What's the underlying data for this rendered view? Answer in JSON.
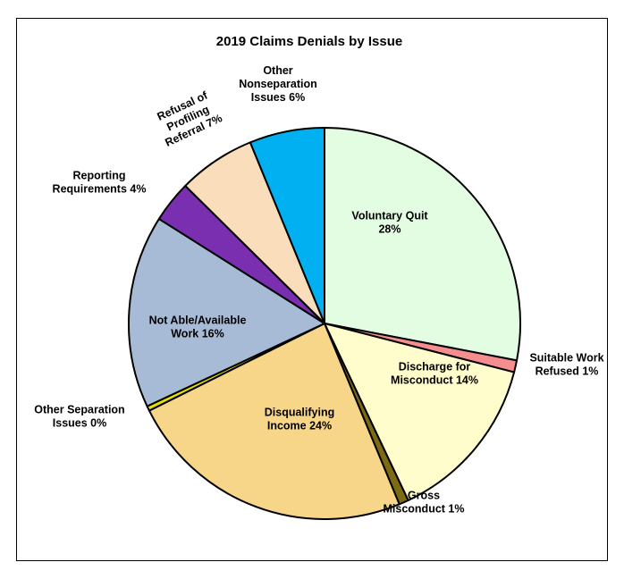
{
  "chart_data": {
    "type": "pie",
    "title": "2019 Claims Denials by Issue",
    "start_angle_deg": 0,
    "direction": "clockwise",
    "slices": [
      {
        "key": "voluntary-quit",
        "label_lines": [
          "Voluntary Quit",
          "28%"
        ],
        "value": 28.5,
        "color": "#E3FDE3"
      },
      {
        "key": "suitable-work-refused",
        "label_lines": [
          "Suitable Work",
          "Refused 1%"
        ],
        "value": 1.0,
        "color": "#F58E8E"
      },
      {
        "key": "discharge-for-misconduct",
        "label_lines": [
          "Discharge for",
          "Misconduct 14%"
        ],
        "value": 14.2,
        "color": "#FFFDCC"
      },
      {
        "key": "gross-misconduct",
        "label_lines": [
          "Gross",
          "Misconduct 1%"
        ],
        "value": 0.8,
        "color": "#7C6A14"
      },
      {
        "key": "disqualifying-income",
        "label_lines": [
          "Disqualifying",
          "Income 24%"
        ],
        "value": 24.3,
        "color": "#F7D68A"
      },
      {
        "key": "other-separation-issues",
        "label_lines": [
          "Other Separation",
          "Issues 0%"
        ],
        "value": 0.4,
        "color": "#E6E000"
      },
      {
        "key": "not-able-available-work",
        "label_lines": [
          "Not Able/Available",
          "Work 16%"
        ],
        "value": 16.2,
        "color": "#A8BBD6"
      },
      {
        "key": "reporting-requirements",
        "label_lines": [
          "Reporting",
          "Requirements 4%"
        ],
        "value": 3.5,
        "color": "#7A2FB0"
      },
      {
        "key": "refusal-of-profiling-referral",
        "label_lines": [
          "Refusal of",
          "Profiling",
          "Referral 7%"
        ],
        "value": 6.5,
        "color": "#FADDBB"
      },
      {
        "key": "other-nonseparation-issues",
        "label_lines": [
          "Other",
          "Nonseparation",
          "Issues 6%"
        ],
        "value": 6.3,
        "color": "#00B0F0"
      }
    ]
  }
}
